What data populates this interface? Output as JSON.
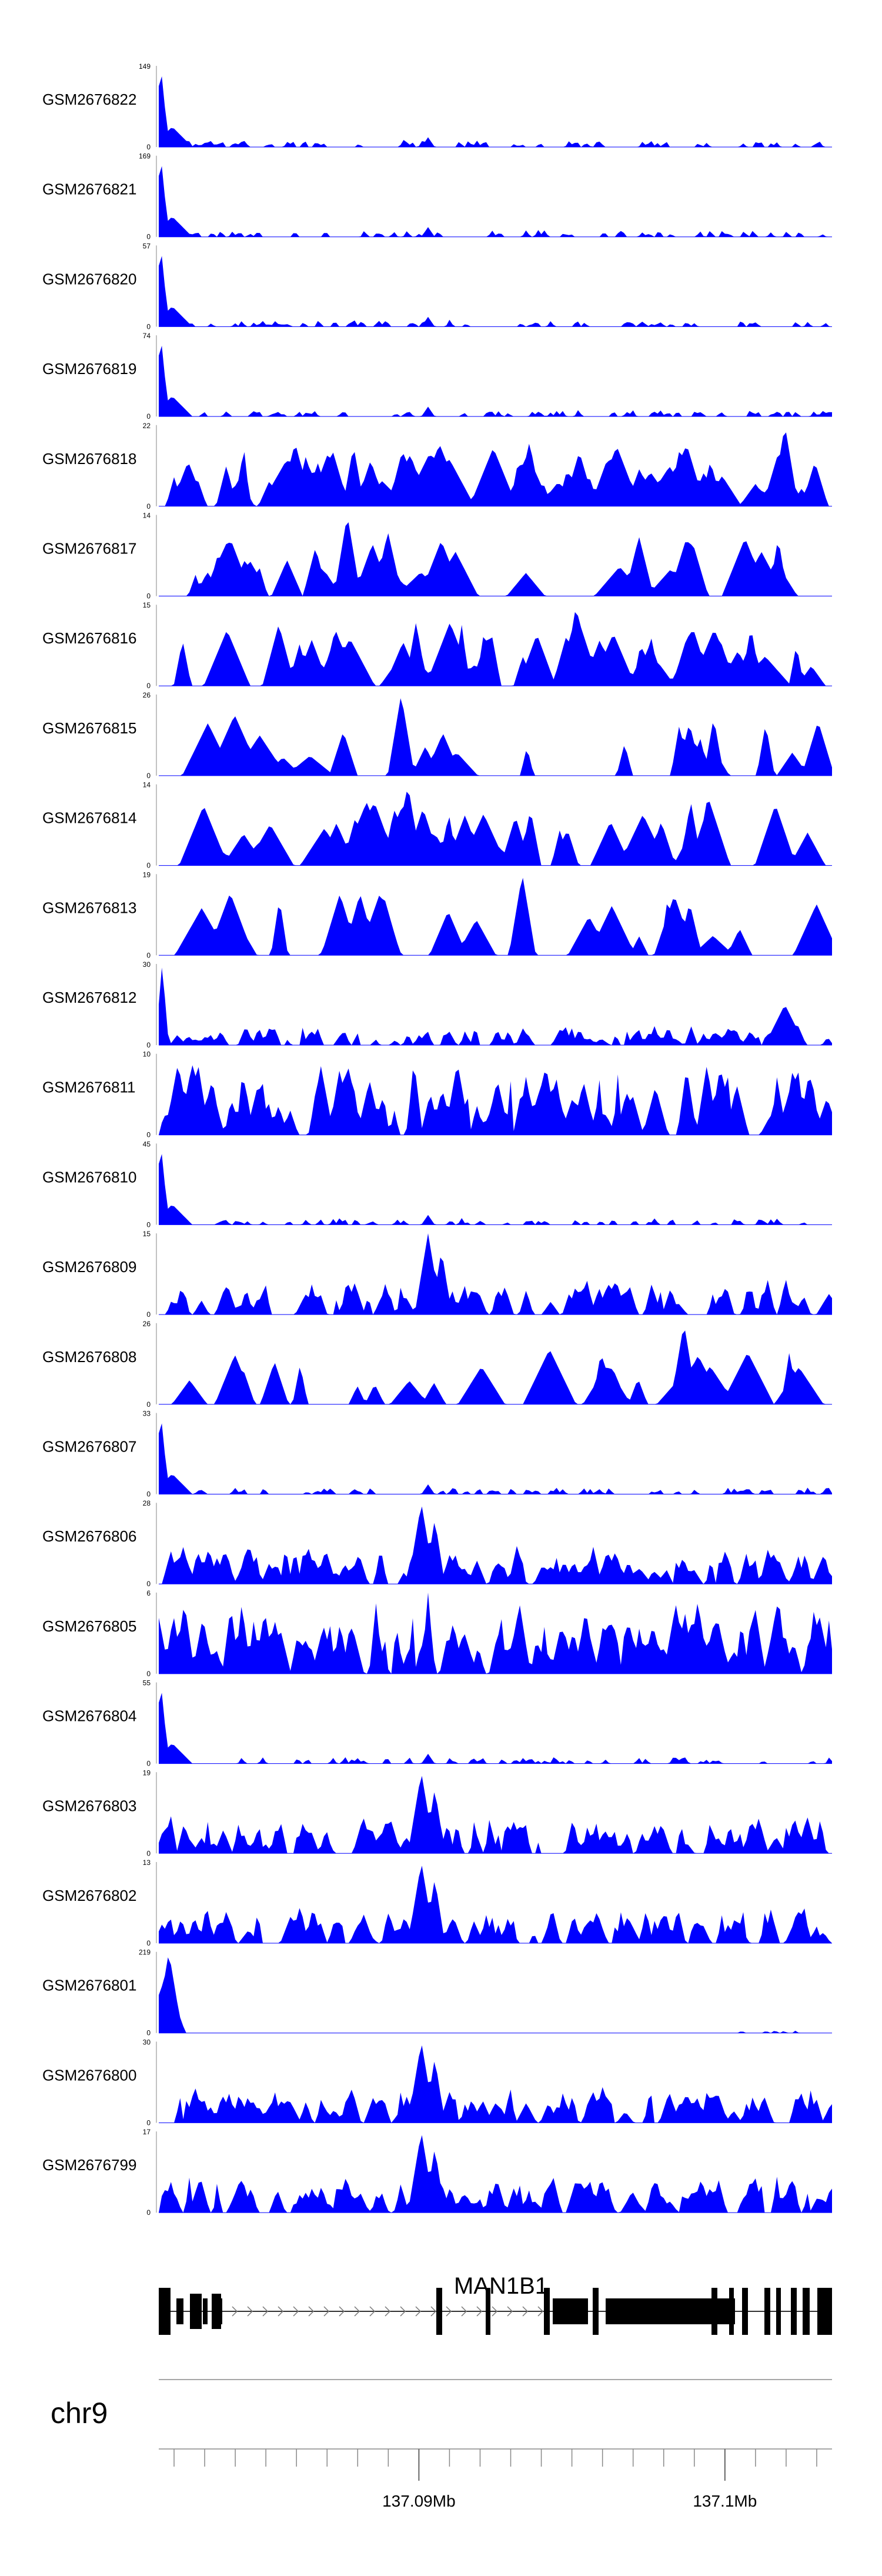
{
  "chart_data": {
    "type": "area",
    "region": {
      "chrom": "chr9",
      "start_mb": 137.0815,
      "end_mb": 137.1035
    },
    "fill_color": "#0000ff",
    "tracks": [
      {
        "name": "GSM2676822",
        "max": "149",
        "zero": "0",
        "style": "early_peak",
        "seed": 1,
        "peak_at": 0.4,
        "n": 3
      },
      {
        "name": "GSM2676821",
        "max": "169",
        "zero": "0",
        "style": "early_peak",
        "seed": 2,
        "peak_at": 0.4,
        "n": 3
      },
      {
        "name": "GSM2676820",
        "max": "57",
        "zero": "0",
        "style": "early_peak",
        "seed": 3,
        "peak_at": 0.4,
        "n": 5
      },
      {
        "name": "GSM2676819",
        "max": "74",
        "zero": "0",
        "style": "early_peak",
        "seed": 4,
        "peak_at": 0.4,
        "n": 4
      },
      {
        "name": "GSM2676818",
        "max": "22",
        "zero": "0",
        "style": "sparse",
        "seed": 5,
        "peak_at": 0.93,
        "n": 60
      },
      {
        "name": "GSM2676817",
        "max": "14",
        "zero": "0",
        "style": "sparse",
        "seed": 6,
        "peak_at": 0.28,
        "n": 30
      },
      {
        "name": "GSM2676816",
        "max": "15",
        "zero": "0",
        "style": "sparse",
        "seed": 7,
        "peak_at": 0.62,
        "n": 55
      },
      {
        "name": "GSM2676815",
        "max": "26",
        "zero": "0",
        "style": "sparse",
        "seed": 8,
        "peak_at": 0.36,
        "n": 20
      },
      {
        "name": "GSM2676814",
        "max": "14",
        "zero": "0",
        "style": "sparse",
        "seed": 9,
        "peak_at": 0.37,
        "n": 40
      },
      {
        "name": "GSM2676813",
        "max": "19",
        "zero": "0",
        "style": "sparse",
        "seed": 10,
        "peak_at": 0.54,
        "n": 28
      },
      {
        "name": "GSM2676812",
        "max": "30",
        "zero": "0",
        "style": "dense_early",
        "seed": 11,
        "peak_at": 0.02,
        "n": 90
      },
      {
        "name": "GSM2676811",
        "max": "10",
        "zero": "0",
        "style": "dense",
        "seed": 12,
        "peak_at": 0.28,
        "n": 110
      },
      {
        "name": "GSM2676810",
        "max": "45",
        "zero": "0",
        "style": "early_peak",
        "seed": 13,
        "peak_at": 0.4,
        "n": 20
      },
      {
        "name": "GSM2676809",
        "max": "15",
        "zero": "0",
        "style": "dense_mid",
        "seed": 14,
        "peak_at": 0.4,
        "n": 90
      },
      {
        "name": "GSM2676808",
        "max": "26",
        "zero": "0",
        "style": "sparse",
        "seed": 15,
        "peak_at": 0.78,
        "n": 24
      },
      {
        "name": "GSM2676807",
        "max": "33",
        "zero": "0",
        "style": "early_peak",
        "seed": 16,
        "peak_at": 0.4,
        "n": 30
      },
      {
        "name": "GSM2676806",
        "max": "28",
        "zero": "0",
        "style": "dense_mid",
        "seed": 17,
        "peak_at": 0.39,
        "n": 110
      },
      {
        "name": "GSM2676805",
        "max": "6",
        "zero": "0",
        "style": "dense",
        "seed": 18,
        "peak_at": 0.4,
        "n": 120
      },
      {
        "name": "GSM2676804",
        "max": "55",
        "zero": "0",
        "style": "early_peak",
        "seed": 19,
        "peak_at": 0.4,
        "n": 25
      },
      {
        "name": "GSM2676803",
        "max": "19",
        "zero": "0",
        "style": "dense_mid",
        "seed": 20,
        "peak_at": 0.39,
        "n": 110
      },
      {
        "name": "GSM2676802",
        "max": "13",
        "zero": "0",
        "style": "dense_mid",
        "seed": 21,
        "peak_at": 0.39,
        "n": 110
      },
      {
        "name": "GSM2676801",
        "max": "219",
        "zero": "0",
        "style": "early_block",
        "seed": 22,
        "peak_at": 0.02,
        "n": 5
      },
      {
        "name": "GSM2676800",
        "max": "30",
        "zero": "0",
        "style": "dense_mid",
        "seed": 23,
        "peak_at": 0.39,
        "n": 110
      },
      {
        "name": "GSM2676799",
        "max": "17",
        "zero": "0",
        "style": "dense_mid",
        "seed": 24,
        "peak_at": 0.39,
        "n": 110
      }
    ],
    "gene": {
      "name": "MAN1B1",
      "strand": "+"
    },
    "chromosome_label": "chr9",
    "x_axis": {
      "ticks": [
        {
          "label": "137.09Mb",
          "mb": 137.09
        },
        {
          "label": "137.1Mb",
          "mb": 137.1
        }
      ]
    }
  }
}
